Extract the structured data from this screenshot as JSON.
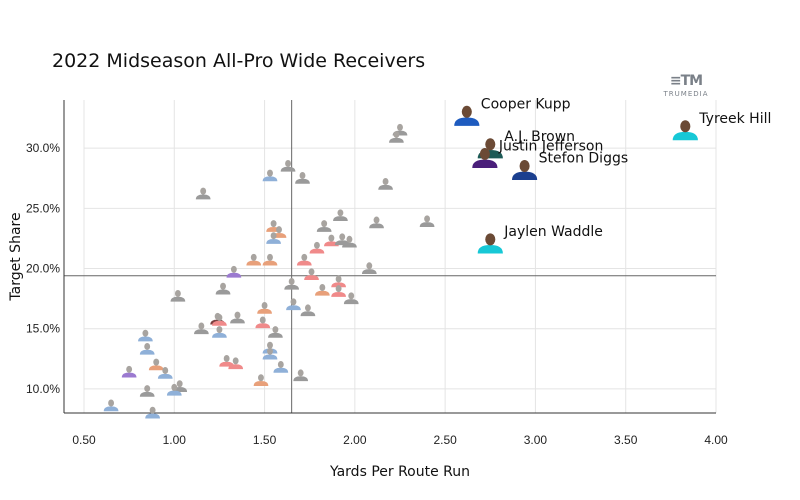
{
  "header": {
    "title": "2022 Midseason All-Pro Wide Receivers",
    "brand_mark": "≡TM",
    "brand_name": "TRUMEDIA"
  },
  "chart_data": {
    "type": "scatter",
    "title": "2022 Midseason All-Pro Wide Receivers",
    "xlabel": "Yards Per Route Run",
    "ylabel": "Target Share",
    "xlim": [
      0.5,
      4.0
    ],
    "ylim": [
      8.0,
      34.0
    ],
    "x_ticks": [
      "0.50",
      "1.00",
      "1.50",
      "2.00",
      "2.50",
      "3.00",
      "3.50",
      "4.00"
    ],
    "y_ticks": [
      "10.0%",
      "15.0%",
      "20.0%",
      "25.0%",
      "30.0%"
    ],
    "grid": true,
    "reference_lines": {
      "x_mean": 1.65,
      "y_mean": 19.4
    },
    "highlighted": [
      {
        "name": "Cooper Kupp",
        "x": 2.62,
        "y": 32.8,
        "jersey": "#1e5bbf"
      },
      {
        "name": "Tyreek Hill",
        "x": 3.83,
        "y": 31.6,
        "jersey": "#17c8d6"
      },
      {
        "name": "A.J. Brown",
        "x": 2.75,
        "y": 30.1,
        "jersey": "#1d5a56"
      },
      {
        "name": "Justin Jefferson",
        "x": 2.72,
        "y": 29.3,
        "jersey": "#4a1f7a"
      },
      {
        "name": "Stefon Diggs",
        "x": 2.94,
        "y": 28.3,
        "jersey": "#1b3f8f"
      },
      {
        "name": "Jaylen Waddle",
        "x": 2.75,
        "y": 22.2,
        "jersey": "#17c8d6"
      }
    ],
    "points": [
      {
        "x": 2.25,
        "y": 31.6,
        "jersey": "#9a9a9a"
      },
      {
        "x": 2.23,
        "y": 31.0,
        "jersey": "#9a9a9a"
      },
      {
        "x": 1.63,
        "y": 28.6,
        "jersey": "#9a9a9a"
      },
      {
        "x": 1.53,
        "y": 27.8,
        "jersey": "#8fb0d8"
      },
      {
        "x": 1.71,
        "y": 27.6,
        "jersey": "#9a9a9a"
      },
      {
        "x": 2.17,
        "y": 27.1,
        "jersey": "#9a9a9a"
      },
      {
        "x": 1.16,
        "y": 26.3,
        "jersey": "#9a9a9a"
      },
      {
        "x": 1.92,
        "y": 24.5,
        "jersey": "#9a9a9a"
      },
      {
        "x": 2.4,
        "y": 24.0,
        "jersey": "#9a9a9a"
      },
      {
        "x": 2.12,
        "y": 23.9,
        "jersey": "#9a9a9a"
      },
      {
        "x": 1.55,
        "y": 23.6,
        "jersey": "#e8a07a"
      },
      {
        "x": 1.83,
        "y": 23.6,
        "jersey": "#9a9a9a"
      },
      {
        "x": 1.58,
        "y": 23.1,
        "jersey": "#e8a07a"
      },
      {
        "x": 1.55,
        "y": 22.6,
        "jersey": "#8fb0d8"
      },
      {
        "x": 1.87,
        "y": 22.4,
        "jersey": "#f08a8a"
      },
      {
        "x": 1.93,
        "y": 22.5,
        "jersey": "#9a9a9a"
      },
      {
        "x": 1.97,
        "y": 22.3,
        "jersey": "#9a9a9a"
      },
      {
        "x": 1.79,
        "y": 21.8,
        "jersey": "#f08a8a"
      },
      {
        "x": 1.44,
        "y": 20.8,
        "jersey": "#e8a07a"
      },
      {
        "x": 1.53,
        "y": 20.8,
        "jersey": "#e8a07a"
      },
      {
        "x": 1.72,
        "y": 20.8,
        "jersey": "#f08a8a"
      },
      {
        "x": 1.33,
        "y": 19.8,
        "jersey": "#9b7ad0"
      },
      {
        "x": 1.76,
        "y": 19.6,
        "jersey": "#f08a8a"
      },
      {
        "x": 2.08,
        "y": 20.1,
        "jersey": "#9a9a9a"
      },
      {
        "x": 1.91,
        "y": 19.0,
        "jersey": "#f08a8a"
      },
      {
        "x": 1.65,
        "y": 18.8,
        "jersey": "#9a9a9a"
      },
      {
        "x": 1.27,
        "y": 18.4,
        "jersey": "#9a9a9a"
      },
      {
        "x": 1.82,
        "y": 18.3,
        "jersey": "#e8a07a"
      },
      {
        "x": 1.91,
        "y": 18.2,
        "jersey": "#f08a8a"
      },
      {
        "x": 1.02,
        "y": 17.8,
        "jersey": "#9a9a9a"
      },
      {
        "x": 1.98,
        "y": 17.6,
        "jersey": "#9a9a9a"
      },
      {
        "x": 1.66,
        "y": 17.1,
        "jersey": "#8fb0d8"
      },
      {
        "x": 1.5,
        "y": 16.8,
        "jersey": "#e8a07a"
      },
      {
        "x": 1.74,
        "y": 16.6,
        "jersey": "#9a9a9a"
      },
      {
        "x": 1.35,
        "y": 16.0,
        "jersey": "#9a9a9a"
      },
      {
        "x": 1.24,
        "y": 15.9,
        "jersey": "#7a4040"
      },
      {
        "x": 1.25,
        "y": 15.8,
        "jersey": "#f08a8a"
      },
      {
        "x": 1.49,
        "y": 15.6,
        "jersey": "#f08a8a"
      },
      {
        "x": 1.15,
        "y": 15.1,
        "jersey": "#9a9a9a"
      },
      {
        "x": 1.25,
        "y": 14.8,
        "jersey": "#8fb0d8"
      },
      {
        "x": 1.56,
        "y": 14.8,
        "jersey": "#9a9a9a"
      },
      {
        "x": 0.84,
        "y": 14.5,
        "jersey": "#8fb0d8"
      },
      {
        "x": 1.53,
        "y": 13.5,
        "jersey": "#8fb0d8"
      },
      {
        "x": 0.85,
        "y": 13.4,
        "jersey": "#8fb0d8"
      },
      {
        "x": 1.53,
        "y": 13.0,
        "jersey": "#8fb0d8"
      },
      {
        "x": 1.29,
        "y": 12.4,
        "jersey": "#f08a8a"
      },
      {
        "x": 1.34,
        "y": 12.2,
        "jersey": "#f08a8a"
      },
      {
        "x": 0.9,
        "y": 12.1,
        "jersey": "#e8a07a"
      },
      {
        "x": 1.59,
        "y": 11.9,
        "jersey": "#8fb0d8"
      },
      {
        "x": 0.75,
        "y": 11.5,
        "jersey": "#9b7ad0"
      },
      {
        "x": 0.95,
        "y": 11.4,
        "jersey": "#8fb0d8"
      },
      {
        "x": 1.7,
        "y": 11.2,
        "jersey": "#9a9a9a"
      },
      {
        "x": 1.48,
        "y": 10.8,
        "jersey": "#e8a07a"
      },
      {
        "x": 1.03,
        "y": 10.3,
        "jersey": "#9a9a9a"
      },
      {
        "x": 1.0,
        "y": 10.0,
        "jersey": "#8fb0d8"
      },
      {
        "x": 0.85,
        "y": 9.9,
        "jersey": "#9a9a9a"
      },
      {
        "x": 0.65,
        "y": 8.7,
        "jersey": "#8fb0d8"
      },
      {
        "x": 0.88,
        "y": 8.1,
        "jersey": "#8fb0d8"
      }
    ]
  }
}
